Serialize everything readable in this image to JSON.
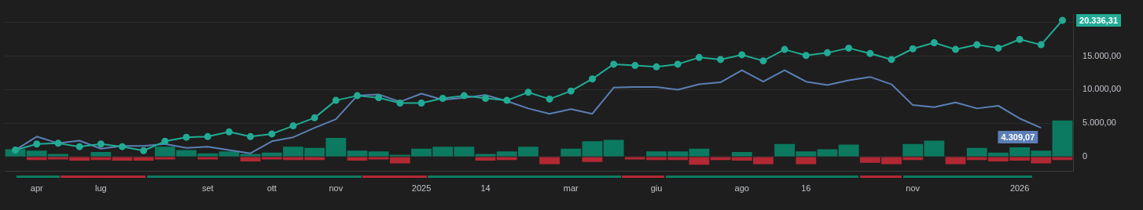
{
  "chart_data": {
    "type": "bar",
    "stacked": true,
    "categories": [
      null,
      "apr",
      null,
      null,
      "lug",
      null,
      null,
      null,
      null,
      "set",
      null,
      null,
      "ott",
      null,
      null,
      "nov",
      null,
      null,
      null,
      "2025",
      null,
      null,
      "14",
      null,
      null,
      null,
      "mar",
      null,
      null,
      null,
      "giu",
      null,
      null,
      null,
      "ago",
      null,
      null,
      "16",
      null,
      null,
      null,
      null,
      "nov",
      null,
      null,
      null,
      null,
      "2026",
      null,
      null
    ],
    "series": [
      {
        "type": "line",
        "color": "#22ab94",
        "marker": "circle",
        "values": [
          1000,
          1900,
          2000,
          1500,
          1900,
          1500,
          900,
          2300,
          2900,
          3000,
          3700,
          3000,
          3400,
          4600,
          5800,
          8400,
          9100,
          8800,
          8000,
          8000,
          8700,
          9100,
          8700,
          8400,
          9600,
          8600,
          9800,
          11600,
          13800,
          13600,
          13400,
          13800,
          14800,
          14500,
          15200,
          14300,
          16000,
          15100,
          15500,
          16200,
          15400,
          14500,
          16100,
          17000,
          16000,
          16700,
          16200,
          17500,
          16700,
          20336.31
        ],
        "value_labels": [
          null,
          null,
          null,
          null,
          null,
          null,
          null,
          null,
          null,
          null,
          null,
          null,
          null,
          null,
          null,
          null,
          null,
          null,
          null,
          null,
          null,
          null,
          null,
          null,
          null,
          null,
          null,
          null,
          null,
          null,
          null,
          null,
          null,
          null,
          null,
          null,
          null,
          null,
          null,
          null,
          null,
          null,
          null,
          null,
          null,
          null,
          null,
          null,
          null,
          "20.336,31"
        ]
      },
      {
        "type": "line",
        "color": "#5b7fb5",
        "marker": "none",
        "values": [
          1000,
          3000,
          2000,
          2400,
          1200,
          1600,
          1600,
          1900,
          1300,
          1500,
          1000,
          500,
          2300,
          2900,
          4300,
          5600,
          9100,
          9300,
          8200,
          9400,
          8500,
          8800,
          9200,
          8300,
          7200,
          6400,
          7100,
          6400,
          10300,
          10400,
          10400,
          10000,
          10800,
          11100,
          12900,
          11200,
          12900,
          11200,
          10700,
          11400,
          11900,
          10800,
          7700,
          7400,
          8100,
          7200,
          7600,
          5700,
          4309.07,
          null
        ],
        "value_labels": [
          null,
          null,
          null,
          null,
          null,
          null,
          null,
          null,
          null,
          null,
          null,
          null,
          null,
          null,
          null,
          null,
          null,
          null,
          null,
          null,
          null,
          null,
          null,
          null,
          null,
          null,
          null,
          null,
          null,
          null,
          null,
          null,
          null,
          null,
          null,
          null,
          null,
          null,
          null,
          null,
          null,
          null,
          null,
          null,
          null,
          null,
          null,
          null,
          "4.309,07",
          null
        ]
      },
      {
        "color": "#0b7a60",
        "values": [
          1100,
          900,
          400,
          null,
          700,
          null,
          null,
          1500,
          1000,
          500,
          800,
          400,
          600,
          1500,
          1300,
          2800,
          900,
          800,
          300,
          1200,
          1500,
          1500,
          400,
          800,
          1500,
          null,
          1200,
          2300,
          2500,
          null,
          800,
          800,
          1200,
          null,
          700,
          null,
          1900,
          800,
          1100,
          1800,
          null,
          null,
          1900,
          2400,
          null,
          1300,
          600,
          1400,
          900,
          5400
        ]
      },
      {
        "color": "#b22833",
        "values": [
          null,
          -500,
          -400,
          -600,
          -500,
          -600,
          -600,
          -400,
          null,
          -400,
          null,
          -700,
          -400,
          -500,
          -500,
          null,
          -600,
          -400,
          -1000,
          null,
          null,
          null,
          -600,
          -500,
          null,
          -1100,
          null,
          -800,
          null,
          -400,
          -500,
          -500,
          -1200,
          -500,
          -600,
          -1100,
          null,
          -1100,
          null,
          null,
          -900,
          -1100,
          -500,
          null,
          -1100,
          -500,
          -700,
          -600,
          -1000,
          -500
        ]
      }
    ],
    "ylim": [
      -2200,
      21200
    ],
    "yticks": [
      {
        "value": 0,
        "label": "0"
      },
      {
        "value": 5000,
        "label": "5.000,00"
      },
      {
        "value": 10000,
        "label": "10.000,00"
      },
      {
        "value": 15000,
        "label": "15.000,00"
      },
      {
        "value": 20000,
        "label": null
      }
    ],
    "grid": "y",
    "legend": false
  }
}
